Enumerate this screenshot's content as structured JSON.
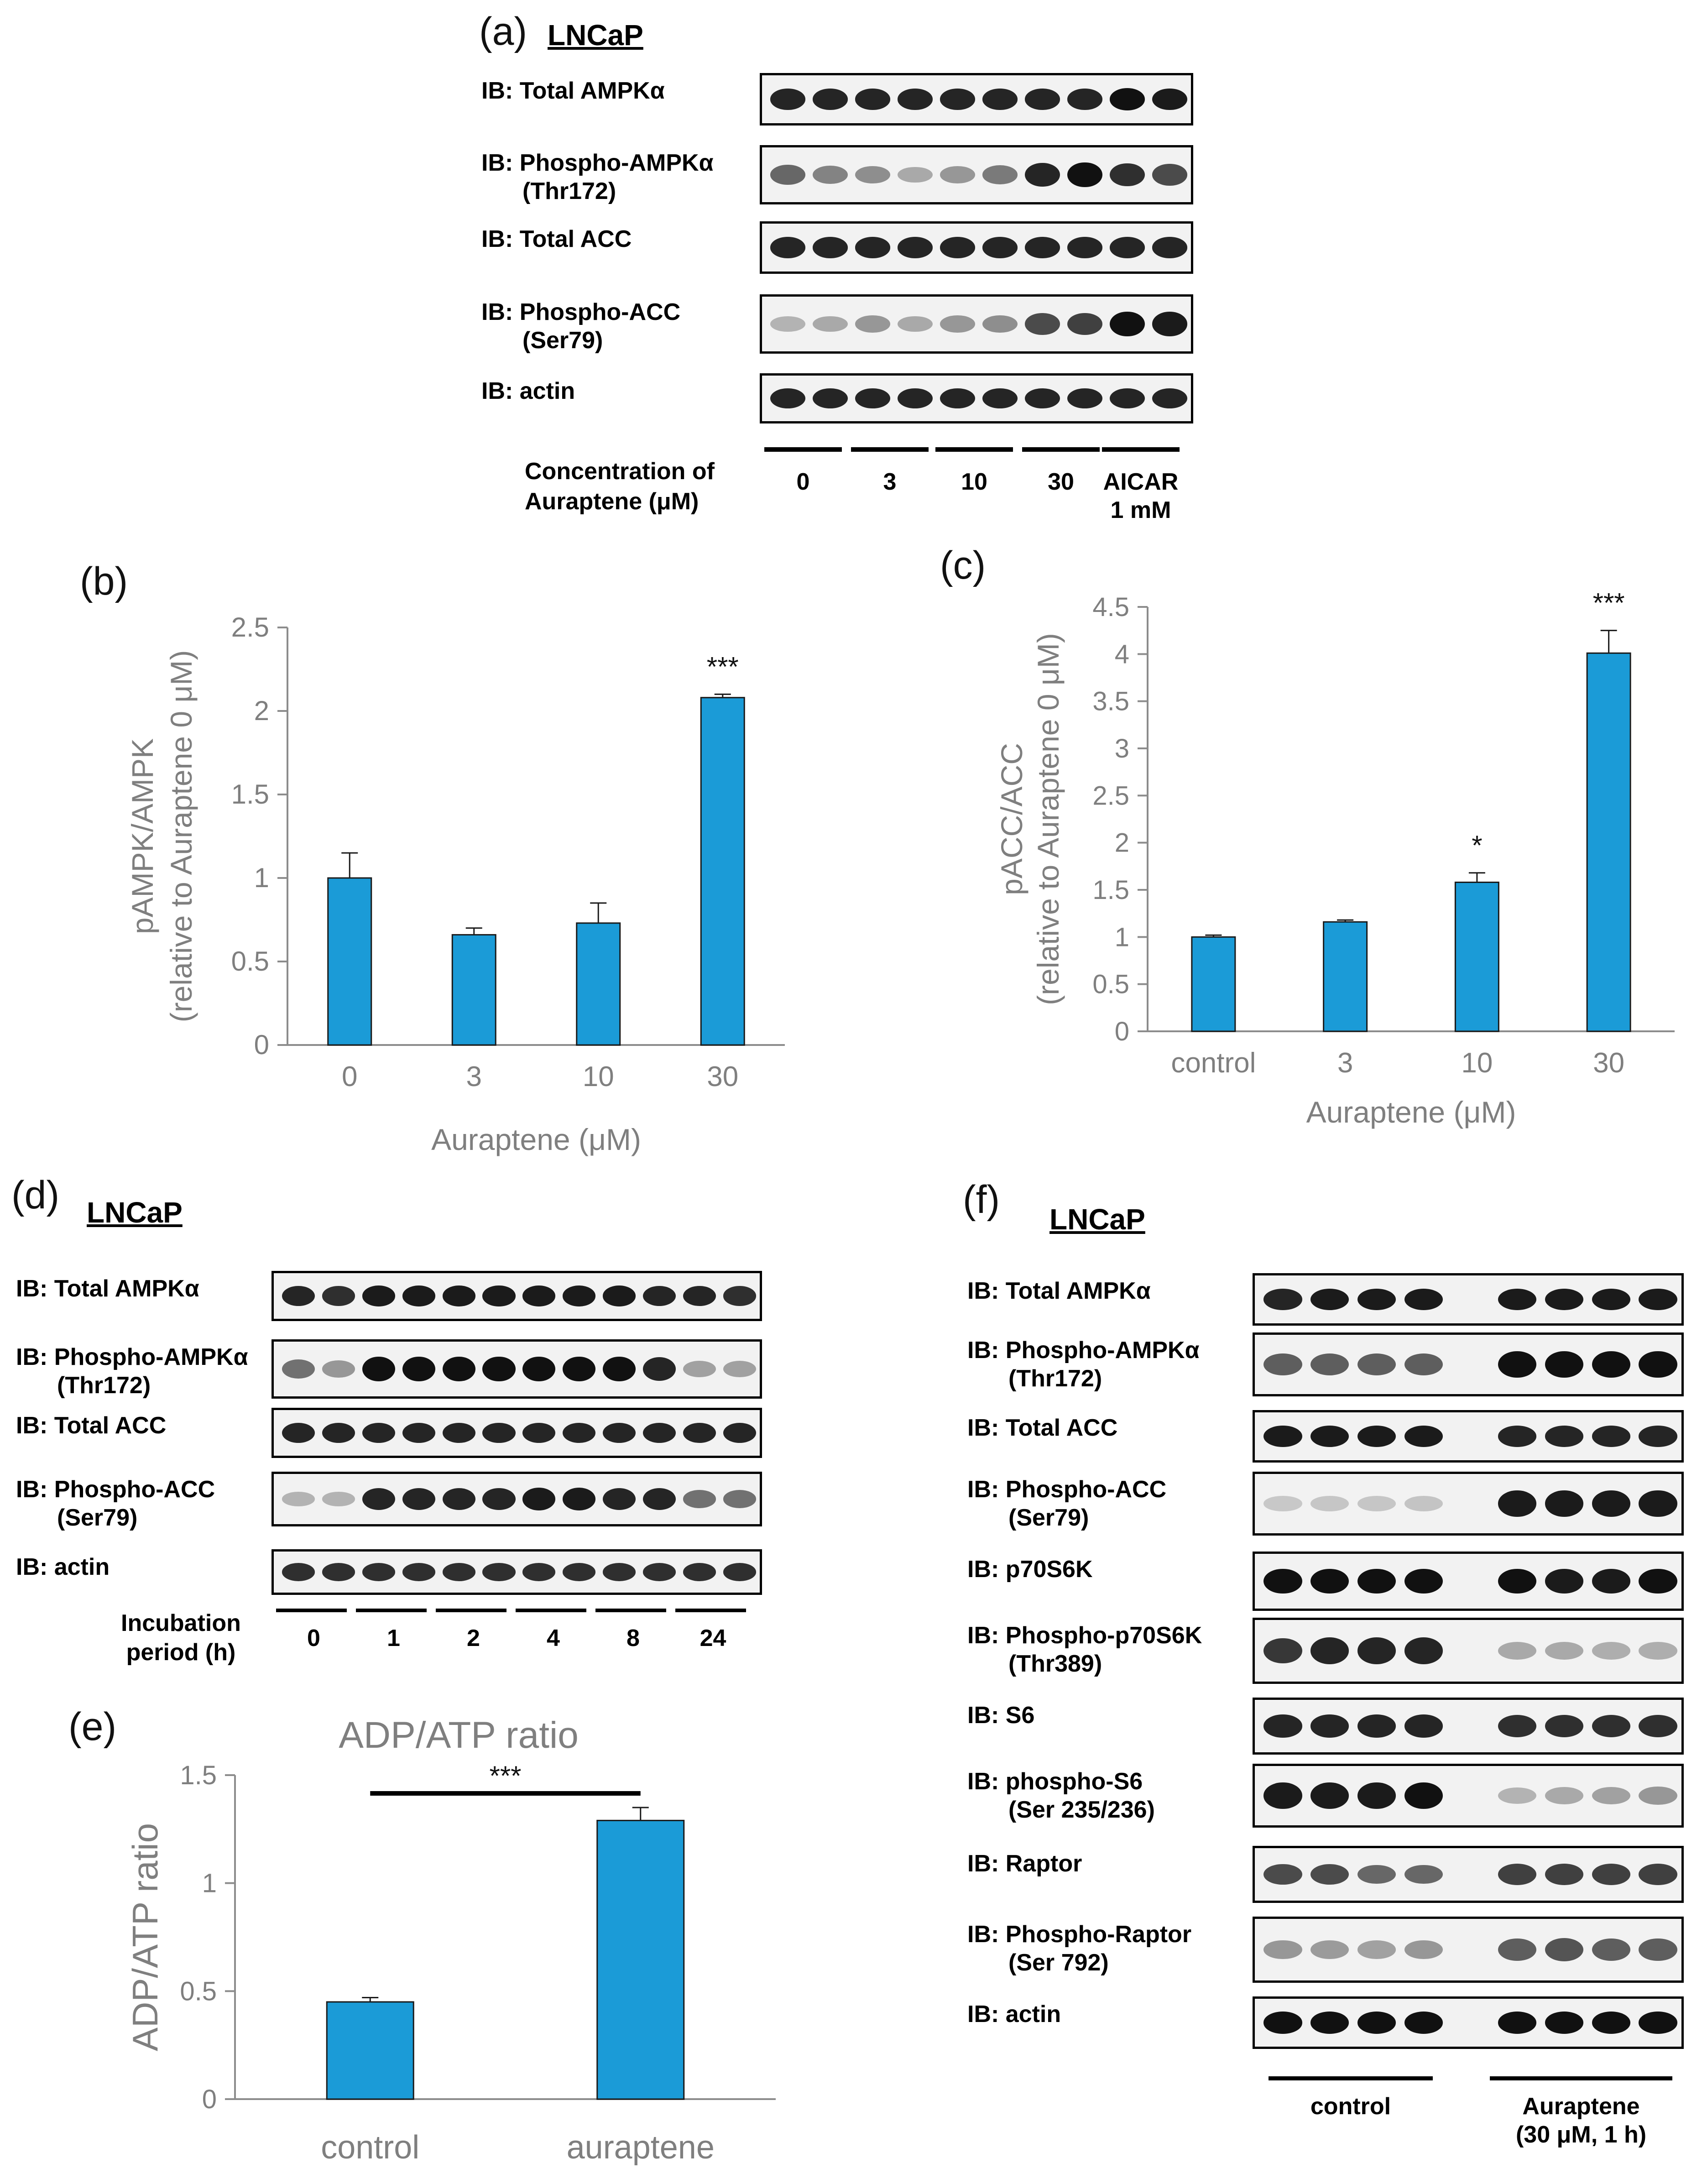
{
  "panel_a": {
    "label": "(a)",
    "cell": "LNCaP",
    "ib_labels": [
      {
        "line1": "IB: Total AMPKα",
        "line2": ""
      },
      {
        "line1": "IB: Phospho-AMPKα",
        "line2": "(Thr172)"
      },
      {
        "line1": "IB: Total ACC",
        "line2": ""
      },
      {
        "line1": "IB: Phospho-ACC",
        "line2": "(Ser79)"
      },
      {
        "line1": "IB: actin",
        "line2": ""
      }
    ],
    "x_title_line1": "Concentration of",
    "x_title_line2": "Auraptene (μM)",
    "groups": [
      {
        "line1": "0",
        "line2": ""
      },
      {
        "line1": "3",
        "line2": ""
      },
      {
        "line1": "10",
        "line2": ""
      },
      {
        "line1": "30",
        "line2": ""
      },
      {
        "line1": "AICAR",
        "line2": "1 mM"
      }
    ]
  },
  "panel_d": {
    "label": "(d)",
    "cell": "LNCaP",
    "ib_labels": [
      {
        "line1": "IB: Total AMPKα",
        "line2": ""
      },
      {
        "line1": "IB: Phospho-AMPKα",
        "line2": "(Thr172)"
      },
      {
        "line1": "IB: Total ACC",
        "line2": ""
      },
      {
        "line1": "IB: Phospho-ACC",
        "line2": "(Ser79)"
      },
      {
        "line1": "IB: actin",
        "line2": ""
      }
    ],
    "x_title_line1": "Incubation",
    "x_title_line2": "period (h)",
    "groups": [
      "0",
      "1",
      "2",
      "4",
      "8",
      "24"
    ]
  },
  "panel_f": {
    "label": "(f)",
    "cell": "LNCaP",
    "ib_labels": [
      {
        "line1": "IB: Total AMPKα",
        "line2": ""
      },
      {
        "line1": "IB: Phospho-AMPKα",
        "line2": "(Thr172)"
      },
      {
        "line1": "IB: Total ACC",
        "line2": ""
      },
      {
        "line1": "IB: Phospho-ACC",
        "line2": "(Ser79)"
      },
      {
        "line1": "IB: p70S6K",
        "line2": ""
      },
      {
        "line1": "IB: Phospho-p70S6K",
        "line2": "(Thr389)"
      },
      {
        "line1": "IB: S6",
        "line2": ""
      },
      {
        "line1": "IB: phospho-S6",
        "line2": "(Ser 235/236)"
      },
      {
        "line1": "IB: Raptor",
        "line2": ""
      },
      {
        "line1": "IB: Phospho-Raptor",
        "line2": "(Ser 792)"
      },
      {
        "line1": "IB: actin",
        "line2": ""
      }
    ],
    "groups": [
      {
        "line1": "control",
        "line2": ""
      },
      {
        "line1": "Auraptene",
        "line2": "(30 μM, 1 h)"
      }
    ]
  },
  "chart_data": [
    {
      "panel": "(b)",
      "type": "bar",
      "title": "",
      "categories": [
        "0",
        "3",
        "10",
        "30"
      ],
      "values": [
        1.0,
        0.66,
        0.73,
        2.08
      ],
      "errors": [
        0.15,
        0.04,
        0.12,
        0.02
      ],
      "significance": [
        "",
        "",
        "",
        "***"
      ],
      "xlabel": "Auraptene (μM)",
      "ylabel_line1": "pAMPK/AMPK",
      "ylabel_line2": "(relative to Auraptene 0 μM)",
      "ylim": [
        0,
        2.5
      ],
      "yticks": [
        "0",
        "0.5",
        "1",
        "1.5",
        "2",
        "2.5"
      ],
      "bar_color": "#1B9BD7",
      "grid": false
    },
    {
      "panel": "(c)",
      "type": "bar",
      "title": "",
      "categories": [
        "control",
        "3",
        "10",
        "30"
      ],
      "values": [
        1.0,
        1.16,
        1.58,
        4.01
      ],
      "errors": [
        0.02,
        0.02,
        0.1,
        0.24
      ],
      "significance": [
        "",
        "",
        "*",
        "***"
      ],
      "xlabel": "Auraptene (μM)",
      "ylabel_line1": "pACC/ACC",
      "ylabel_line2": "(relative to Auraptene 0 μM)",
      "ylim": [
        0,
        4.5
      ],
      "yticks": [
        "0",
        "0.5",
        "1",
        "1.5",
        "2",
        "2.5",
        "3",
        "3.5",
        "4",
        "4.5"
      ],
      "bar_color": "#1B9BD7",
      "grid": false
    },
    {
      "panel": "(e)",
      "type": "bar",
      "title": "ADP/ATP ratio",
      "categories": [
        "control",
        "auraptene"
      ],
      "values": [
        0.45,
        1.29
      ],
      "errors": [
        0.02,
        0.06
      ],
      "significance_bracket": "***",
      "xlabel": "",
      "ylabel_line1": "ADP/ATP ratio",
      "ylabel_line2": "",
      "ylim": [
        0,
        1.5
      ],
      "yticks": [
        "0",
        "0.5",
        "1",
        "1.5"
      ],
      "bar_color": "#1B9BD7",
      "grid": false
    }
  ]
}
